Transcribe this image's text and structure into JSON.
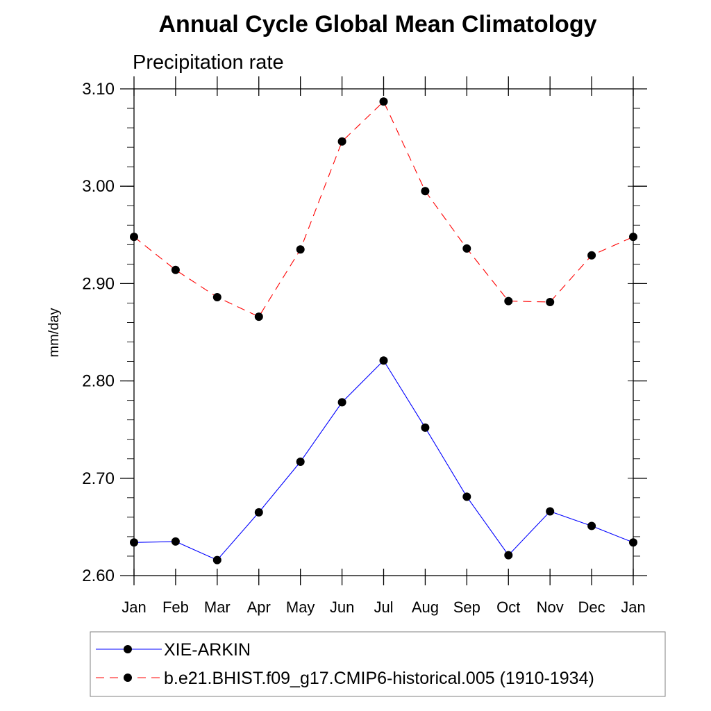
{
  "chart_data": {
    "type": "line",
    "title": "Annual Cycle Global Mean Climatology",
    "subtitle": "Precipitation rate",
    "xlabel": "",
    "ylabel": "mm/day",
    "categories": [
      "Jan",
      "Feb",
      "Mar",
      "Apr",
      "May",
      "Jun",
      "Jul",
      "Aug",
      "Sep",
      "Oct",
      "Nov",
      "Dec",
      "Jan"
    ],
    "ylim": [
      2.6,
      3.1
    ],
    "yticks": [
      "2.60",
      "2.70",
      "2.80",
      "2.90",
      "3.00",
      "3.10"
    ],
    "grid": false,
    "legend_position": "bottom",
    "series": [
      {
        "name": "XIE-ARKIN",
        "color": "#0000ff",
        "line_style": "solid",
        "values": [
          2.634,
          2.635,
          2.616,
          2.665,
          2.717,
          2.778,
          2.821,
          2.752,
          2.681,
          2.621,
          2.666,
          2.651,
          2.634
        ]
      },
      {
        "name": "b.e21.BHIST.f09_g17.CMIP6-historical.005 (1910-1934)",
        "color": "#ff0000",
        "line_style": "dashed",
        "values": [
          2.948,
          2.914,
          2.886,
          2.866,
          2.935,
          3.046,
          3.087,
          2.995,
          2.936,
          2.882,
          2.881,
          2.929,
          2.948
        ]
      }
    ]
  }
}
